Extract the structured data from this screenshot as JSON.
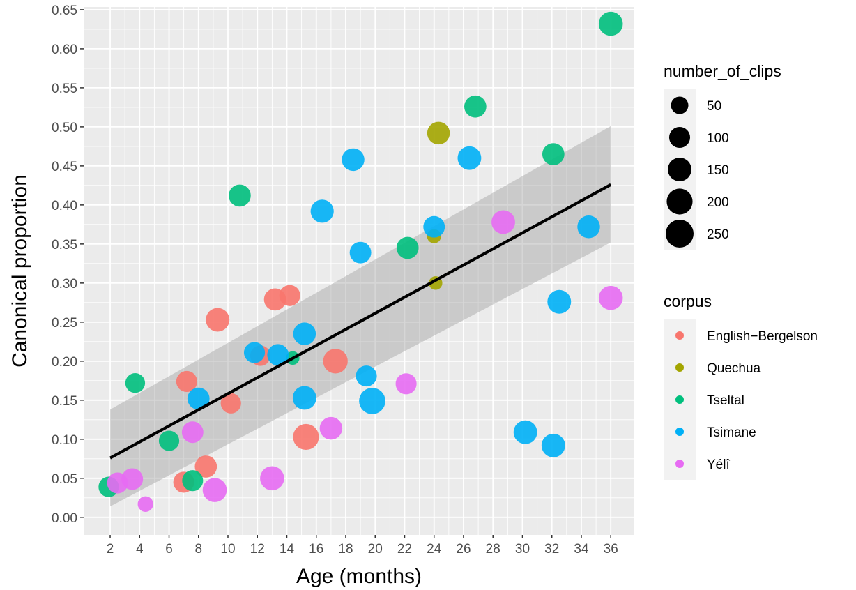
{
  "chart_data": {
    "type": "scatter",
    "xlabel": "Age (months)",
    "ylabel": "Canonical proportion",
    "xlim": [
      0.2,
      37.6
    ],
    "ylim": [
      -0.0225,
      0.6535
    ],
    "x_ticks": [
      2,
      4,
      6,
      8,
      10,
      12,
      14,
      16,
      18,
      20,
      22,
      24,
      26,
      28,
      30,
      32,
      34,
      36
    ],
    "x_tick_labels": [
      "2",
      "4",
      "6",
      "8",
      "10",
      "12",
      "14",
      "16",
      "18",
      "20",
      "22",
      "24",
      "26",
      "28",
      "30",
      "32",
      "34",
      "36"
    ],
    "y_ticks": [
      0,
      0.05,
      0.1,
      0.15,
      0.2,
      0.25,
      0.3,
      0.35,
      0.4,
      0.45,
      0.5,
      0.55,
      0.6,
      0.65
    ],
    "y_tick_labels": [
      "0.00",
      "0.05",
      "0.10",
      "0.15",
      "0.20",
      "0.25",
      "0.30",
      "0.35",
      "0.40",
      "0.45",
      "0.50",
      "0.55",
      "0.60",
      "0.65"
    ],
    "grid": true,
    "background": "#ebebeb",
    "point_opacity": 0.9,
    "legend_position": "right",
    "size_legend": {
      "title": "number_of_clips",
      "breaks": [
        50,
        100,
        150,
        200,
        250
      ],
      "labels": [
        "50",
        "100",
        "150",
        "200",
        "250"
      ]
    },
    "color_legend": {
      "title": "corpus",
      "entries": [
        {
          "name": "English−Bergelson",
          "color": "#F8766D"
        },
        {
          "name": "Quechua",
          "color": "#A3A500"
        },
        {
          "name": "Tseltal",
          "color": "#00BF7D"
        },
        {
          "name": "Tsimane",
          "color": "#00B0F6"
        },
        {
          "name": "Yélî",
          "color": "#E76BF3"
        }
      ]
    },
    "regression": {
      "x": [
        2,
        36
      ],
      "y": [
        0.076,
        0.426
      ],
      "ci_lower": [
        0.014,
        0.352
      ],
      "ci_upper": [
        0.138,
        0.501
      ],
      "line_color": "#000000",
      "ribbon_color": "#999999"
    },
    "series": [
      {
        "name": "English−Bergelson",
        "points": [
          {
            "x": 7.0,
            "y": 0.045,
            "clips": 100
          },
          {
            "x": 8.5,
            "y": 0.065,
            "clips": 120
          },
          {
            "x": 7.2,
            "y": 0.174,
            "clips": 100
          },
          {
            "x": 9.3,
            "y": 0.253,
            "clips": 150
          },
          {
            "x": 10.2,
            "y": 0.146,
            "clips": 90
          },
          {
            "x": 12.2,
            "y": 0.207,
            "clips": 90
          },
          {
            "x": 13.2,
            "y": 0.279,
            "clips": 120
          },
          {
            "x": 14.2,
            "y": 0.284,
            "clips": 100
          },
          {
            "x": 15.3,
            "y": 0.103,
            "clips": 200
          },
          {
            "x": 17.3,
            "y": 0.2,
            "clips": 170
          }
        ]
      },
      {
        "name": "Quechua",
        "points": [
          {
            "x": 24.0,
            "y": 0.36,
            "clips": 18
          },
          {
            "x": 24.1,
            "y": 0.3,
            "clips": 14
          },
          {
            "x": 24.3,
            "y": 0.492,
            "clips": 130
          }
        ]
      },
      {
        "name": "Tseltal",
        "points": [
          {
            "x": 1.9,
            "y": 0.039,
            "clips": 90
          },
          {
            "x": 3.7,
            "y": 0.172,
            "clips": 80
          },
          {
            "x": 6.0,
            "y": 0.098,
            "clips": 90
          },
          {
            "x": 7.6,
            "y": 0.047,
            "clips": 100
          },
          {
            "x": 10.8,
            "y": 0.412,
            "clips": 120
          },
          {
            "x": 14.4,
            "y": 0.204,
            "clips": 14
          },
          {
            "x": 22.2,
            "y": 0.345,
            "clips": 120
          },
          {
            "x": 26.8,
            "y": 0.526,
            "clips": 120
          },
          {
            "x": 32.1,
            "y": 0.465,
            "clips": 120
          },
          {
            "x": 36.0,
            "y": 0.632,
            "clips": 160
          }
        ]
      },
      {
        "name": "Tsimane",
        "points": [
          {
            "x": 8.0,
            "y": 0.152,
            "clips": 120
          },
          {
            "x": 11.8,
            "y": 0.211,
            "clips": 100
          },
          {
            "x": 13.4,
            "y": 0.208,
            "clips": 110
          },
          {
            "x": 15.2,
            "y": 0.235,
            "clips": 130
          },
          {
            "x": 15.2,
            "y": 0.153,
            "clips": 150
          },
          {
            "x": 16.4,
            "y": 0.392,
            "clips": 140
          },
          {
            "x": 18.5,
            "y": 0.458,
            "clips": 130
          },
          {
            "x": 19.0,
            "y": 0.339,
            "clips": 110
          },
          {
            "x": 19.4,
            "y": 0.181,
            "clips": 100
          },
          {
            "x": 19.8,
            "y": 0.149,
            "clips": 210
          },
          {
            "x": 24.0,
            "y": 0.372,
            "clips": 110
          },
          {
            "x": 26.4,
            "y": 0.46,
            "clips": 150
          },
          {
            "x": 30.2,
            "y": 0.109,
            "clips": 150
          },
          {
            "x": 32.1,
            "y": 0.092,
            "clips": 150
          },
          {
            "x": 32.5,
            "y": 0.276,
            "clips": 150
          },
          {
            "x": 34.5,
            "y": 0.372,
            "clips": 130
          }
        ]
      },
      {
        "name": "Yélî",
        "points": [
          {
            "x": 2.5,
            "y": 0.044,
            "clips": 100
          },
          {
            "x": 3.5,
            "y": 0.049,
            "clips": 110
          },
          {
            "x": 4.4,
            "y": 0.017,
            "clips": 30
          },
          {
            "x": 7.6,
            "y": 0.109,
            "clips": 110
          },
          {
            "x": 9.1,
            "y": 0.035,
            "clips": 160
          },
          {
            "x": 13.0,
            "y": 0.05,
            "clips": 160
          },
          {
            "x": 17.0,
            "y": 0.114,
            "clips": 130
          },
          {
            "x": 22.1,
            "y": 0.171,
            "clips": 100
          },
          {
            "x": 28.7,
            "y": 0.378,
            "clips": 150
          },
          {
            "x": 36.0,
            "y": 0.281,
            "clips": 160
          }
        ]
      }
    ]
  }
}
